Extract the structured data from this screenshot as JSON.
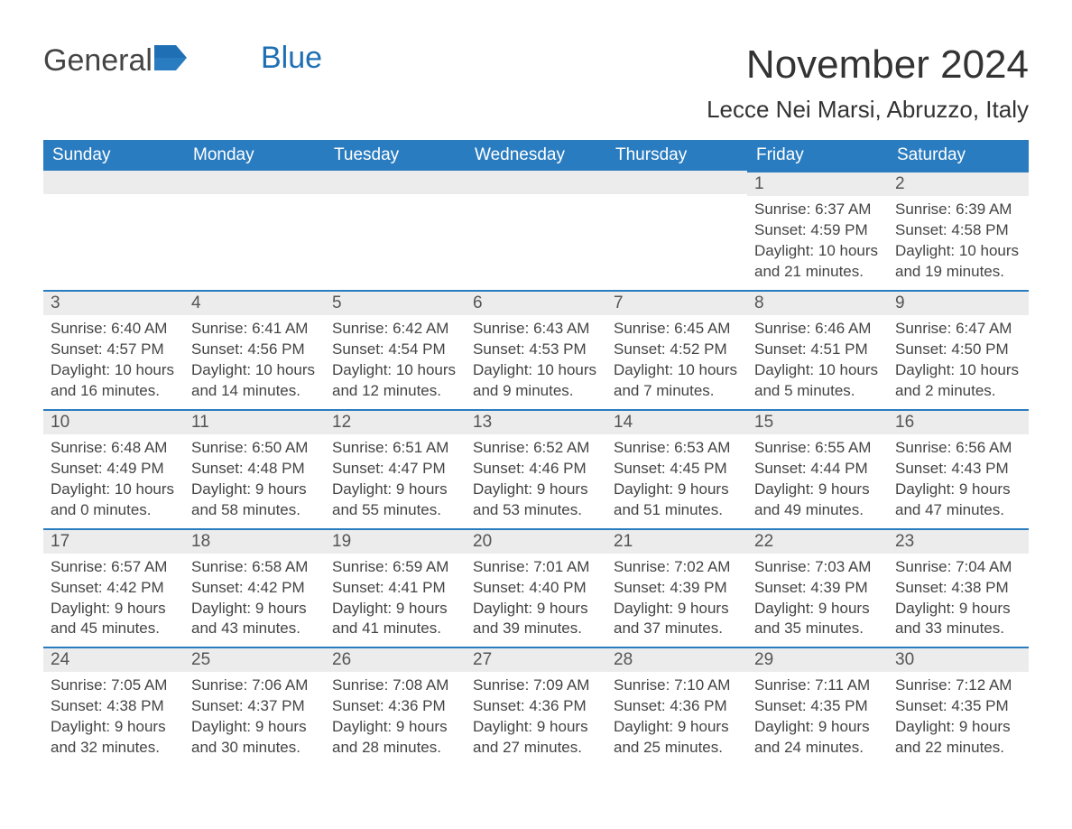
{
  "logo": {
    "text1": "General",
    "text2": "Blue"
  },
  "title": "November 2024",
  "location": "Lecce Nei Marsi, Abruzzo, Italy",
  "colors": {
    "header_bg": "#2a7cc0",
    "header_text": "#ffffff",
    "day_head_bg": "#ececec",
    "day_border_top": "#2a7cc0",
    "text": "#444444",
    "logo_gray": "#444444",
    "logo_blue": "#1e6fb4",
    "background": "#ffffff"
  },
  "day_headers": [
    "Sunday",
    "Monday",
    "Tuesday",
    "Wednesday",
    "Thursday",
    "Friday",
    "Saturday"
  ],
  "weeks": [
    [
      null,
      null,
      null,
      null,
      null,
      {
        "n": "1",
        "sunrise": "Sunrise: 6:37 AM",
        "sunset": "Sunset: 4:59 PM",
        "daylight": "Daylight: 10 hours and 21 minutes."
      },
      {
        "n": "2",
        "sunrise": "Sunrise: 6:39 AM",
        "sunset": "Sunset: 4:58 PM",
        "daylight": "Daylight: 10 hours and 19 minutes."
      }
    ],
    [
      {
        "n": "3",
        "sunrise": "Sunrise: 6:40 AM",
        "sunset": "Sunset: 4:57 PM",
        "daylight": "Daylight: 10 hours and 16 minutes."
      },
      {
        "n": "4",
        "sunrise": "Sunrise: 6:41 AM",
        "sunset": "Sunset: 4:56 PM",
        "daylight": "Daylight: 10 hours and 14 minutes."
      },
      {
        "n": "5",
        "sunrise": "Sunrise: 6:42 AM",
        "sunset": "Sunset: 4:54 PM",
        "daylight": "Daylight: 10 hours and 12 minutes."
      },
      {
        "n": "6",
        "sunrise": "Sunrise: 6:43 AM",
        "sunset": "Sunset: 4:53 PM",
        "daylight": "Daylight: 10 hours and 9 minutes."
      },
      {
        "n": "7",
        "sunrise": "Sunrise: 6:45 AM",
        "sunset": "Sunset: 4:52 PM",
        "daylight": "Daylight: 10 hours and 7 minutes."
      },
      {
        "n": "8",
        "sunrise": "Sunrise: 6:46 AM",
        "sunset": "Sunset: 4:51 PM",
        "daylight": "Daylight: 10 hours and 5 minutes."
      },
      {
        "n": "9",
        "sunrise": "Sunrise: 6:47 AM",
        "sunset": "Sunset: 4:50 PM",
        "daylight": "Daylight: 10 hours and 2 minutes."
      }
    ],
    [
      {
        "n": "10",
        "sunrise": "Sunrise: 6:48 AM",
        "sunset": "Sunset: 4:49 PM",
        "daylight": "Daylight: 10 hours and 0 minutes."
      },
      {
        "n": "11",
        "sunrise": "Sunrise: 6:50 AM",
        "sunset": "Sunset: 4:48 PM",
        "daylight": "Daylight: 9 hours and 58 minutes."
      },
      {
        "n": "12",
        "sunrise": "Sunrise: 6:51 AM",
        "sunset": "Sunset: 4:47 PM",
        "daylight": "Daylight: 9 hours and 55 minutes."
      },
      {
        "n": "13",
        "sunrise": "Sunrise: 6:52 AM",
        "sunset": "Sunset: 4:46 PM",
        "daylight": "Daylight: 9 hours and 53 minutes."
      },
      {
        "n": "14",
        "sunrise": "Sunrise: 6:53 AM",
        "sunset": "Sunset: 4:45 PM",
        "daylight": "Daylight: 9 hours and 51 minutes."
      },
      {
        "n": "15",
        "sunrise": "Sunrise: 6:55 AM",
        "sunset": "Sunset: 4:44 PM",
        "daylight": "Daylight: 9 hours and 49 minutes."
      },
      {
        "n": "16",
        "sunrise": "Sunrise: 6:56 AM",
        "sunset": "Sunset: 4:43 PM",
        "daylight": "Daylight: 9 hours and 47 minutes."
      }
    ],
    [
      {
        "n": "17",
        "sunrise": "Sunrise: 6:57 AM",
        "sunset": "Sunset: 4:42 PM",
        "daylight": "Daylight: 9 hours and 45 minutes."
      },
      {
        "n": "18",
        "sunrise": "Sunrise: 6:58 AM",
        "sunset": "Sunset: 4:42 PM",
        "daylight": "Daylight: 9 hours and 43 minutes."
      },
      {
        "n": "19",
        "sunrise": "Sunrise: 6:59 AM",
        "sunset": "Sunset: 4:41 PM",
        "daylight": "Daylight: 9 hours and 41 minutes."
      },
      {
        "n": "20",
        "sunrise": "Sunrise: 7:01 AM",
        "sunset": "Sunset: 4:40 PM",
        "daylight": "Daylight: 9 hours and 39 minutes."
      },
      {
        "n": "21",
        "sunrise": "Sunrise: 7:02 AM",
        "sunset": "Sunset: 4:39 PM",
        "daylight": "Daylight: 9 hours and 37 minutes."
      },
      {
        "n": "22",
        "sunrise": "Sunrise: 7:03 AM",
        "sunset": "Sunset: 4:39 PM",
        "daylight": "Daylight: 9 hours and 35 minutes."
      },
      {
        "n": "23",
        "sunrise": "Sunrise: 7:04 AM",
        "sunset": "Sunset: 4:38 PM",
        "daylight": "Daylight: 9 hours and 33 minutes."
      }
    ],
    [
      {
        "n": "24",
        "sunrise": "Sunrise: 7:05 AM",
        "sunset": "Sunset: 4:38 PM",
        "daylight": "Daylight: 9 hours and 32 minutes."
      },
      {
        "n": "25",
        "sunrise": "Sunrise: 7:06 AM",
        "sunset": "Sunset: 4:37 PM",
        "daylight": "Daylight: 9 hours and 30 minutes."
      },
      {
        "n": "26",
        "sunrise": "Sunrise: 7:08 AM",
        "sunset": "Sunset: 4:36 PM",
        "daylight": "Daylight: 9 hours and 28 minutes."
      },
      {
        "n": "27",
        "sunrise": "Sunrise: 7:09 AM",
        "sunset": "Sunset: 4:36 PM",
        "daylight": "Daylight: 9 hours and 27 minutes."
      },
      {
        "n": "28",
        "sunrise": "Sunrise: 7:10 AM",
        "sunset": "Sunset: 4:36 PM",
        "daylight": "Daylight: 9 hours and 25 minutes."
      },
      {
        "n": "29",
        "sunrise": "Sunrise: 7:11 AM",
        "sunset": "Sunset: 4:35 PM",
        "daylight": "Daylight: 9 hours and 24 minutes."
      },
      {
        "n": "30",
        "sunrise": "Sunrise: 7:12 AM",
        "sunset": "Sunset: 4:35 PM",
        "daylight": "Daylight: 9 hours and 22 minutes."
      }
    ]
  ]
}
